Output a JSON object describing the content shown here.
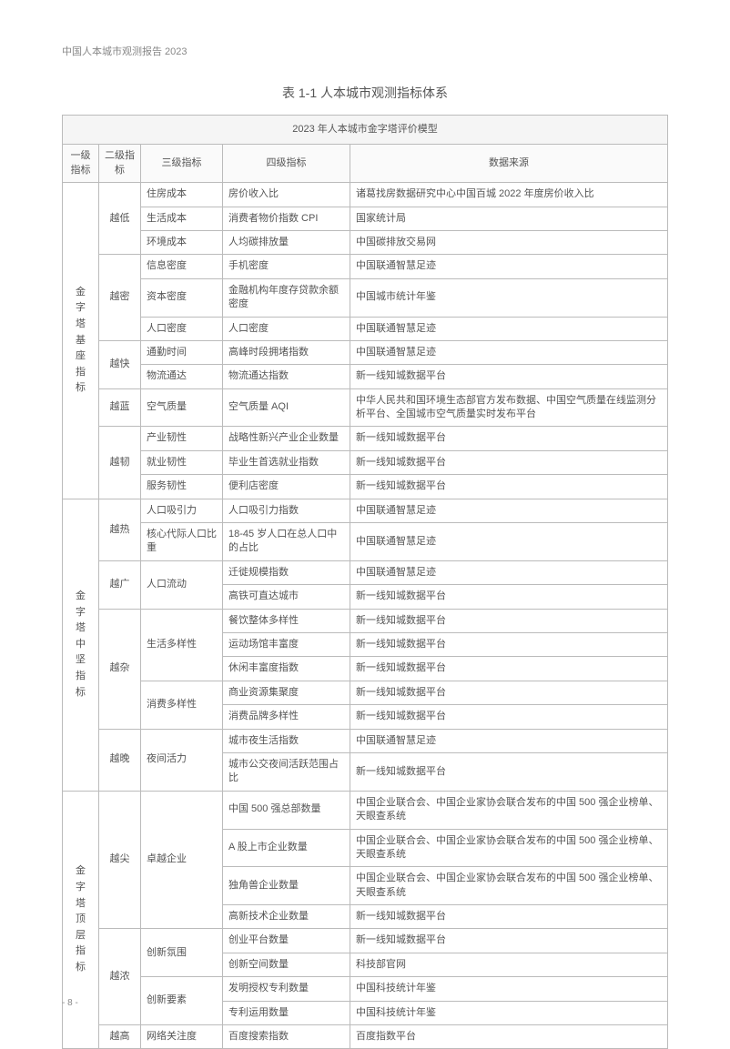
{
  "page": {
    "header": "中国人本城市观测报告 2023",
    "table_title": "表 1-1 人本城市观测指标体系",
    "page_number": "- 8 -"
  },
  "table": {
    "model_title": "2023 年人本城市金字塔评价模型",
    "headers": {
      "l1": "一级指标",
      "l2": "二级指标",
      "l3": "三级指标",
      "l4": "四级指标",
      "source": "数据来源"
    },
    "colors": {
      "border": "#bbbbbb",
      "text": "#555555",
      "header_bg": "#f5f5f5",
      "background": "#ffffff"
    },
    "groups": [
      {
        "l1": "金字塔基座指标",
        "l2groups": [
          {
            "l2": "越低",
            "rows": [
              {
                "l3": "住房成本",
                "l4": "房价收入比",
                "src": "诸葛找房数据研究中心中国百城 2022 年度房价收入比"
              },
              {
                "l3": "生活成本",
                "l4": "消费者物价指数 CPI",
                "src": "国家统计局"
              },
              {
                "l3": "环境成本",
                "l4": "人均碳排放量",
                "src": "中国碳排放交易网"
              }
            ]
          },
          {
            "l2": "越密",
            "rows": [
              {
                "l3": "信息密度",
                "l4": "手机密度",
                "src": "中国联通智慧足迹"
              },
              {
                "l3": "资本密度",
                "l4": "金融机构年度存贷款余额密度",
                "src": "中国城市统计年鉴"
              },
              {
                "l3": "人口密度",
                "l4": "人口密度",
                "src": "中国联通智慧足迹"
              }
            ]
          },
          {
            "l2": "越快",
            "rows": [
              {
                "l3": "通勤时间",
                "l4": "高峰时段拥堵指数",
                "src": "中国联通智慧足迹"
              },
              {
                "l3": "物流通达",
                "l4": "物流通达指数",
                "src": "新一线知城数据平台"
              }
            ]
          },
          {
            "l2": "越蓝",
            "rows": [
              {
                "l3": "空气质量",
                "l4": "空气质量 AQI",
                "src": "中华人民共和国环境生态部官方发布数据、中国空气质量在线监测分析平台、全国城市空气质量实时发布平台"
              }
            ]
          },
          {
            "l2": "越韧",
            "rows": [
              {
                "l3": "产业韧性",
                "l4": "战略性新兴产业企业数量",
                "src": "新一线知城数据平台"
              },
              {
                "l3": "就业韧性",
                "l4": "毕业生首选就业指数",
                "src": "新一线知城数据平台"
              },
              {
                "l3": "服务韧性",
                "l4": "便利店密度",
                "src": "新一线知城数据平台"
              }
            ]
          }
        ]
      },
      {
        "l1": "金字塔中坚指标",
        "l2groups": [
          {
            "l2": "越热",
            "rows": [
              {
                "l3": "人口吸引力",
                "l4": "人口吸引力指数",
                "src": "中国联通智慧足迹"
              },
              {
                "l3": "核心代际人口比重",
                "l4": "18-45 岁人口在总人口中的占比",
                "src": "中国联通智慧足迹"
              }
            ]
          },
          {
            "l2": "越广",
            "l3groups": [
              {
                "l3": "人口流动",
                "rows": [
                  {
                    "l4": "迁徙规模指数",
                    "src": "中国联通智慧足迹"
                  },
                  {
                    "l4": "高铁可直达城市",
                    "src": "新一线知城数据平台"
                  }
                ]
              }
            ]
          },
          {
            "l2": "越杂",
            "l3groups": [
              {
                "l3": "生活多样性",
                "rows": [
                  {
                    "l4": "餐饮整体多样性",
                    "src": "新一线知城数据平台"
                  },
                  {
                    "l4": "运动场馆丰富度",
                    "src": "新一线知城数据平台"
                  },
                  {
                    "l4": "休闲丰富度指数",
                    "src": "新一线知城数据平台"
                  }
                ]
              },
              {
                "l3": "消费多样性",
                "rows": [
                  {
                    "l4": "商业资源集聚度",
                    "src": "新一线知城数据平台"
                  },
                  {
                    "l4": "消费品牌多样性",
                    "src": "新一线知城数据平台"
                  }
                ]
              }
            ]
          },
          {
            "l2": "越晚",
            "l3groups": [
              {
                "l3": "夜间活力",
                "rows": [
                  {
                    "l4": "城市夜生活指数",
                    "src": "中国联通智慧足迹"
                  },
                  {
                    "l4": "城市公交夜间活跃范围占比",
                    "src": "新一线知城数据平台"
                  }
                ]
              }
            ]
          }
        ]
      },
      {
        "l1": "金字塔顶层指标",
        "l2groups": [
          {
            "l2": "越尖",
            "l3groups": [
              {
                "l3": "卓越企业",
                "rows": [
                  {
                    "l4": "中国 500 强总部数量",
                    "src": "中国企业联合会、中国企业家协会联合发布的中国 500 强企业榜单、天眼查系统"
                  },
                  {
                    "l4": "A 股上市企业数量",
                    "src": "中国企业联合会、中国企业家协会联合发布的中国 500 强企业榜单、天眼查系统"
                  },
                  {
                    "l4": "独角兽企业数量",
                    "src": "中国企业联合会、中国企业家协会联合发布的中国 500 强企业榜单、天眼查系统"
                  },
                  {
                    "l4": "高新技术企业数量",
                    "src": "新一线知城数据平台"
                  }
                ]
              }
            ]
          },
          {
            "l2": "越浓",
            "l3groups": [
              {
                "l3": "创新氛围",
                "rows": [
                  {
                    "l4": "创业平台数量",
                    "src": "新一线知城数据平台"
                  },
                  {
                    "l4": "创新空间数量",
                    "src": "科技部官网"
                  }
                ]
              },
              {
                "l3": "创新要素",
                "rows": [
                  {
                    "l4": "发明授权专利数量",
                    "src": "中国科技统计年鉴"
                  },
                  {
                    "l4": "专利运用数量",
                    "src": "中国科技统计年鉴"
                  }
                ]
              }
            ]
          },
          {
            "l2": "越高",
            "rows": [
              {
                "l3": "网络关注度",
                "l4": "百度搜索指数",
                "src": "百度指数平台"
              }
            ]
          }
        ]
      }
    ]
  }
}
